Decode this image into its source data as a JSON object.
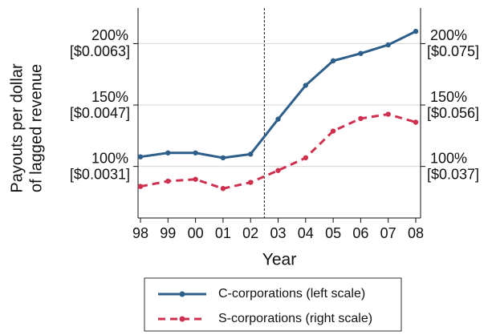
{
  "chart_data": {
    "type": "line",
    "xlabel": "Year",
    "ylabel": [
      "Payouts per dollar",
      "of lagged revenue"
    ],
    "categories": [
      "98",
      "99",
      "00",
      "01",
      "02",
      "03",
      "04",
      "05",
      "06",
      "07",
      "08"
    ],
    "series": [
      {
        "name": "C-corporations (left scale)",
        "color": "#2e5f8a",
        "dash": false,
        "values": [
          107.8,
          111,
          111,
          107,
          110,
          138.5,
          166,
          186,
          192,
          199,
          210
        ]
      },
      {
        "name": "S-corporations (right scale)",
        "color": "#d0304f",
        "dash": true,
        "axis": "y2",
        "values": [
          83.7,
          88,
          89.5,
          82,
          87,
          96.7,
          107,
          128.8,
          139,
          142.5,
          136
        ]
      }
    ],
    "ylim": [
      58,
      229
    ],
    "yticks": [
      {
        "value": 100,
        "label": "100%"
      },
      {
        "value": 150,
        "label": "150%"
      },
      {
        "value": 200,
        "label": "200%"
      }
    ],
    "ytick_sublabels": [
      "[$0.0031]",
      "[$0.0047]",
      "[$0.0063]"
    ],
    "y2lim": [
      58,
      229
    ],
    "y2ticks": [
      {
        "value": 100,
        "label": "100%"
      },
      {
        "value": 150,
        "label": "150%"
      },
      {
        "value": 200,
        "label": "200%"
      }
    ],
    "y2tick_sublabels": [
      "[$0.037]",
      "[$0.056]",
      "[$0.075]"
    ],
    "vline_x": 4.5,
    "grid": true
  }
}
